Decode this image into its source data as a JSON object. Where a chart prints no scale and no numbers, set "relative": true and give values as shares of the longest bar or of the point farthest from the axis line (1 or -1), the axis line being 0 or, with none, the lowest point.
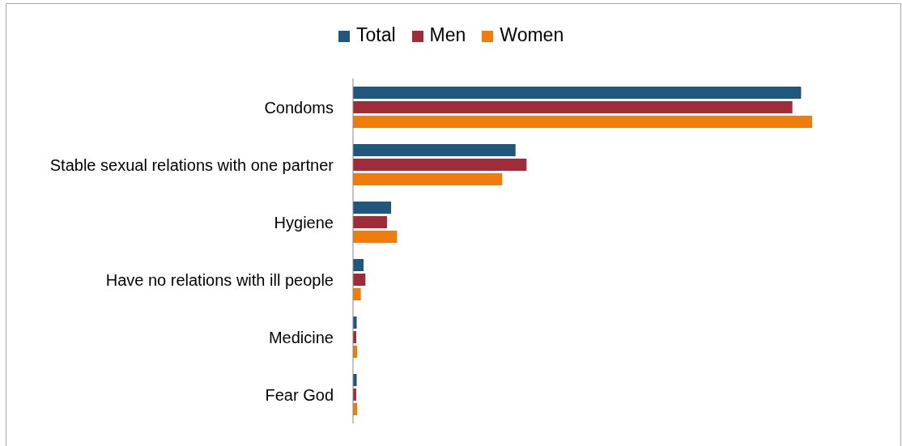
{
  "chart_data": {
    "type": "bar",
    "orientation": "horizontal",
    "relative": true,
    "legend": "top",
    "categories": [
      "Condoms",
      "Stable sexual relations with one partner",
      "Hygiene",
      "Have no relations with ill people",
      "Medicine",
      "Fear God"
    ],
    "series": [
      {
        "name": "Total",
        "color": "#1f587c",
        "values": [
          0.976,
          0.354,
          0.083,
          0.023,
          0.008,
          0.008
        ]
      },
      {
        "name": "Men",
        "color": "#a02b39",
        "values": [
          0.957,
          0.378,
          0.074,
          0.027,
          0.007,
          0.007
        ]
      },
      {
        "name": "Women",
        "color": "#ef7d0b",
        "values": [
          1,
          0.325,
          0.096,
          0.017,
          0.009,
          0.009
        ]
      }
    ]
  }
}
